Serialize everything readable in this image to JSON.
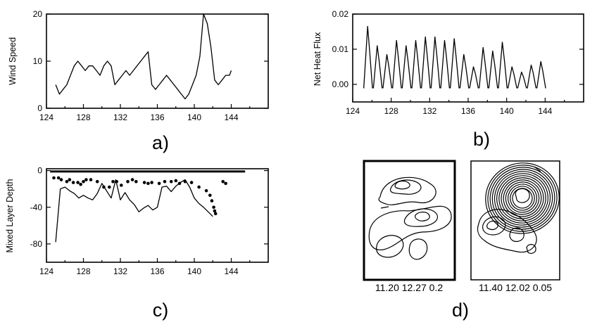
{
  "chart_data": [
    {
      "panel": "a)",
      "type": "line",
      "ylabel": "Wind Speed",
      "xlim": [
        124,
        148
      ],
      "ylim": [
        0,
        20
      ],
      "xticks": [
        124,
        128,
        132,
        136,
        140,
        144
      ],
      "yticks": [
        0,
        10,
        20
      ],
      "series": [
        {
          "x": [
            125.0,
            125.4,
            125.8,
            126.2,
            126.6,
            127.0,
            127.4,
            127.8,
            128.2,
            128.6,
            129.0,
            129.4,
            129.8,
            130.2,
            130.6,
            131.0,
            131.4,
            131.8,
            132.2,
            132.6,
            133.0,
            133.4,
            133.8,
            134.2,
            134.6,
            135.0,
            135.4,
            135.8,
            136.2,
            136.6,
            137.0,
            137.4,
            137.8,
            138.2,
            138.6,
            139.0,
            139.4,
            139.8,
            140.2,
            140.6,
            141.0,
            141.4,
            141.8,
            142.2,
            142.6,
            143.0,
            143.4,
            143.8,
            144.0
          ],
          "y": [
            5,
            3,
            4,
            5,
            7,
            9,
            10,
            9,
            8,
            9,
            9,
            8,
            7,
            9,
            10,
            9,
            5,
            6,
            7,
            8,
            7,
            8,
            9,
            10,
            11,
            12,
            5,
            4,
            5,
            6,
            7,
            6,
            5,
            4,
            3,
            2,
            3,
            5,
            7,
            11,
            20,
            18,
            13,
            6,
            5,
            6,
            7,
            7,
            8
          ]
        }
      ]
    },
    {
      "panel": "b)",
      "type": "line",
      "ylabel": "Net Heat Flux",
      "xlim": [
        124,
        148
      ],
      "ylim": [
        -0.005,
        0.02
      ],
      "xticks": [
        124,
        128,
        132,
        136,
        140,
        144
      ],
      "yticks": [
        0.0,
        0.01,
        0.02
      ],
      "ytick_labels": [
        "0.00",
        "0.01",
        "0.02"
      ],
      "series": [
        {
          "peaks_x": [
            125.6,
            126.6,
            127.6,
            128.6,
            129.6,
            130.6,
            131.6,
            132.6,
            133.6,
            134.6,
            135.6,
            136.6,
            137.6,
            138.6,
            139.6,
            140.6,
            141.6,
            142.6,
            143.6
          ],
          "peaks_y": [
            0.0165,
            0.011,
            0.0085,
            0.0125,
            0.011,
            0.0125,
            0.0135,
            0.0135,
            0.0125,
            0.013,
            0.0085,
            0.005,
            0.0105,
            0.0095,
            0.012,
            0.005,
            0.0035,
            0.0055,
            0.0065
          ],
          "baseline_y": -0.001,
          "range_x": [
            125.2,
            144.0
          ]
        }
      ]
    },
    {
      "panel": "c)",
      "type": "line",
      "ylabel": "Mixed Layer Depth",
      "xlim": [
        124,
        148
      ],
      "ylim": [
        -100,
        2
      ],
      "xticks": [
        124,
        128,
        132,
        136,
        140,
        144
      ],
      "yticks": [
        0,
        -40,
        -80
      ],
      "series": [
        {
          "x": [
            125.0,
            125.5,
            126.0,
            126.5,
            127.0,
            127.5,
            128.0,
            128.5,
            129.0,
            129.5,
            130.0,
            130.5,
            131.0,
            131.5,
            132.0,
            132.5,
            133.0,
            133.5,
            134.0,
            134.5,
            135.0,
            135.5,
            136.0,
            136.5,
            137.0,
            137.5,
            138.0,
            138.5,
            139.0,
            139.5,
            140.0,
            140.5,
            141.0,
            141.5,
            142.0
          ],
          "y": [
            -78,
            -20,
            -18,
            -22,
            -25,
            -30,
            -27,
            -30,
            -32,
            -25,
            -14,
            -22,
            -30,
            -10,
            -32,
            -24,
            -32,
            -37,
            -45,
            -41,
            -38,
            -43,
            -40,
            -18,
            -17,
            -23,
            -17,
            -13,
            -10,
            -18,
            -30,
            -36,
            -40,
            -45,
            -50
          ]
        }
      ],
      "markers_x": [
        124.8,
        125.3,
        125.6,
        126.2,
        126.5,
        126.9,
        127.4,
        127.7,
        128.0,
        128.3,
        128.8,
        129.5,
        130.2,
        130.8,
        131.2,
        131.6,
        132.1,
        132.8,
        133.3,
        133.7,
        134.6,
        135.0,
        135.4,
        136.2,
        136.8,
        137.5,
        138.0,
        138.4,
        139.0,
        139.7,
        140.5,
        141.3,
        141.7,
        141.9,
        142.1,
        142.2,
        142.3,
        143.1,
        143.4
      ],
      "markers_y": [
        -8,
        -8,
        -10,
        -12,
        -10,
        -13,
        -13,
        -15,
        -12,
        -10,
        -10,
        -12,
        -18,
        -18,
        -12,
        -12,
        -16,
        -12,
        -10,
        -12,
        -13,
        -14,
        -13,
        -14,
        -12,
        -12,
        -11,
        -14,
        -12,
        -13,
        -18,
        -22,
        -27,
        -33,
        -40,
        -44,
        -47,
        -12,
        -14
      ]
    },
    {
      "panel": "d)",
      "type": "contour",
      "captions": [
        "11.20 12.27 0.2",
        "11.40 12.02 0.05"
      ]
    }
  ],
  "panel_letters": {
    "a": "a)",
    "b": "b)",
    "c": "c)",
    "d": "d)"
  }
}
